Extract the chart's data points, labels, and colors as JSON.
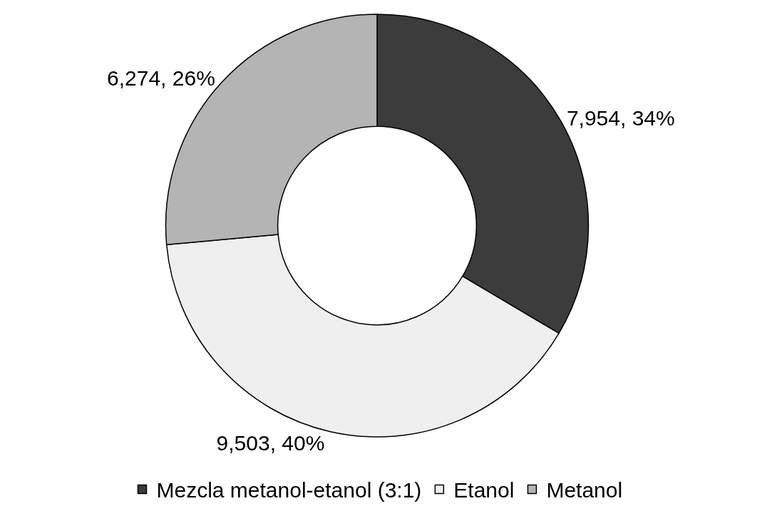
{
  "chart_data": {
    "type": "donut",
    "categories": [
      "Mezcla metanol-etanol (3:1)",
      "Etanol",
      "Metanol"
    ],
    "values": [
      7954,
      9503,
      6274
    ],
    "value_labels": [
      "7,954, 34%",
      "9,503, 40%",
      "6,274, 26%"
    ],
    "colors": [
      "#3c3c3c",
      "#efefef",
      "#b4b4b4"
    ],
    "legend": "bottom"
  }
}
